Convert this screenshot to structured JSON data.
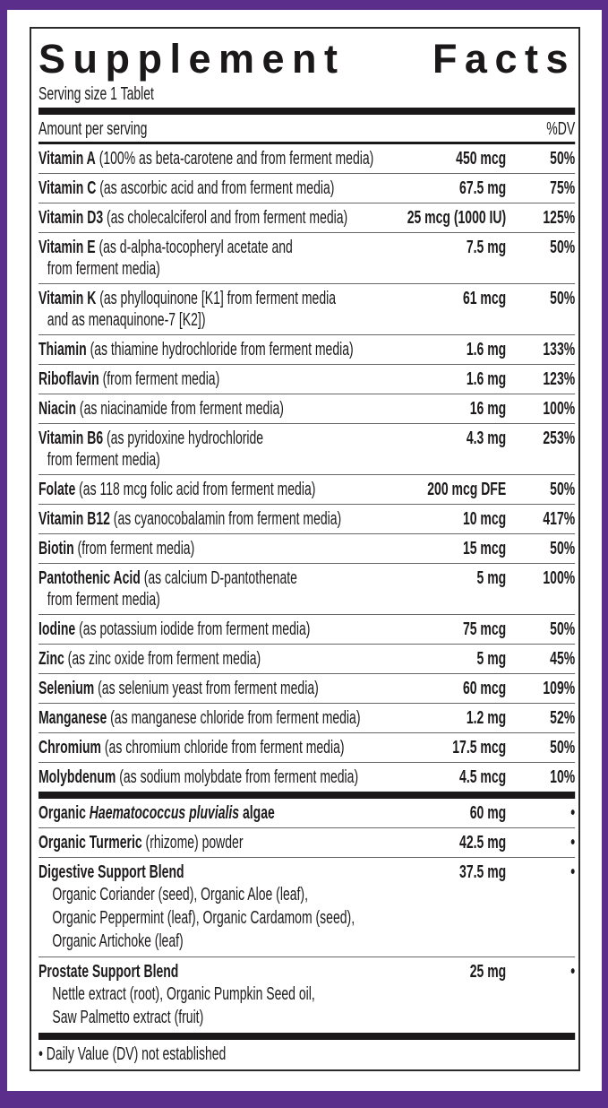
{
  "title": {
    "word1": "Supplement",
    "word2": "Facts"
  },
  "serving_size": "Serving size 1 Tablet",
  "header": {
    "amount_label": "Amount per serving",
    "dv_label": "%DV"
  },
  "colors": {
    "frame": "#5c2e8c",
    "text": "#1c1a1b"
  },
  "vitamins_minerals": [
    {
      "name": "Vitamin A",
      "desc": "(100% as beta-carotene and from ferment media)",
      "desc2": "",
      "amount": "450 mcg",
      "dv": "50%"
    },
    {
      "name": "Vitamin C",
      "desc": "(as ascorbic acid and from ferment media)",
      "desc2": "",
      "amount": "67.5 mg",
      "dv": "75%"
    },
    {
      "name": "Vitamin D3",
      "desc": "(as cholecalciferol and from ferment media)",
      "desc2": "",
      "amount": "25 mcg (1000 IU)",
      "dv": "125%"
    },
    {
      "name": "Vitamin E",
      "desc": "(as d-alpha-tocopheryl acetate and",
      "desc2": "from ferment media)",
      "amount": "7.5 mg",
      "dv": "50%"
    },
    {
      "name": "Vitamin K",
      "desc": "(as phylloquinone [K1] from ferment media",
      "desc2": "and as menaquinone-7 [K2])",
      "amount": "61 mcg",
      "dv": "50%"
    },
    {
      "name": "Thiamin",
      "desc": "(as thiamine hydrochloride from ferment media)",
      "desc2": "",
      "amount": "1.6 mg",
      "dv": "133%"
    },
    {
      "name": "Riboflavin",
      "desc": "(from ferment media)",
      "desc2": "",
      "amount": "1.6 mg",
      "dv": "123%"
    },
    {
      "name": "Niacin",
      "desc": "(as niacinamide from ferment media)",
      "desc2": "",
      "amount": "16 mg",
      "dv": "100%"
    },
    {
      "name": "Vitamin B6",
      "desc": "(as pyridoxine hydrochloride",
      "desc2": "from ferment media)",
      "amount": "4.3 mg",
      "dv": "253%"
    },
    {
      "name": "Folate",
      "desc": "(as 118 mcg folic acid from ferment media)",
      "desc2": "",
      "amount": "200 mcg DFE",
      "dv": "50%"
    },
    {
      "name": "Vitamin B12",
      "desc": "(as cyanocobalamin from ferment media)",
      "desc2": "",
      "amount": "10 mcg",
      "dv": "417%"
    },
    {
      "name": "Biotin",
      "desc": "(from ferment media)",
      "desc2": "",
      "amount": "15 mcg",
      "dv": "50%"
    },
    {
      "name": "Pantothenic Acid",
      "desc": "(as calcium D-pantothenate",
      "desc2": "from ferment media)",
      "amount": "5 mg",
      "dv": "100%"
    },
    {
      "name": "Iodine",
      "desc": "(as potassium iodide from ferment media)",
      "desc2": "",
      "amount": "75 mcg",
      "dv": "50%"
    },
    {
      "name": "Zinc",
      "desc": "(as zinc oxide from ferment media)",
      "desc2": "",
      "amount": "5 mg",
      "dv": "45%"
    },
    {
      "name": "Selenium",
      "desc": "(as selenium yeast from ferment media)",
      "desc2": "",
      "amount": "60 mcg",
      "dv": "109%"
    },
    {
      "name": "Manganese",
      "desc": "(as manganese chloride from ferment media)",
      "desc2": "",
      "amount": "1.2 mg",
      "dv": "52%"
    },
    {
      "name": "Chromium",
      "desc": "(as chromium chloride from ferment media)",
      "desc2": "",
      "amount": "17.5 mcg",
      "dv": "50%"
    },
    {
      "name": "Molybdenum",
      "desc": "(as sodium molybdate from ferment media)",
      "desc2": "",
      "amount": "4.5 mcg",
      "dv": "10%"
    }
  ],
  "other_ingredients": [
    {
      "name": "Organic ",
      "name_italic": "Haematococcus pluvialis",
      "name_post": " algae",
      "desc": "",
      "sublines": [],
      "amount": "60 mg",
      "dv": "•"
    },
    {
      "name": "Organic Turmeric",
      "name_italic": "",
      "name_post": "",
      "desc": "(rhizome) powder",
      "sublines": [],
      "amount": "42.5 mg",
      "dv": "•"
    },
    {
      "name": "Digestive Support Blend",
      "name_italic": "",
      "name_post": "",
      "desc": "",
      "sublines": [
        "Organic Coriander (seed), Organic Aloe (leaf),",
        "Organic Peppermint (leaf), Organic Cardamom (seed),",
        "Organic Artichoke (leaf)"
      ],
      "amount": "37.5 mg",
      "dv": "•"
    },
    {
      "name": "Prostate Support Blend",
      "name_italic": "",
      "name_post": "",
      "desc": "",
      "sublines": [
        "Nettle extract (root), Organic Pumpkin Seed oil,",
        "Saw Palmetto extract (fruit)"
      ],
      "amount": "25 mg",
      "dv": "•"
    }
  ],
  "footnote": "• Daily Value (DV) not established"
}
